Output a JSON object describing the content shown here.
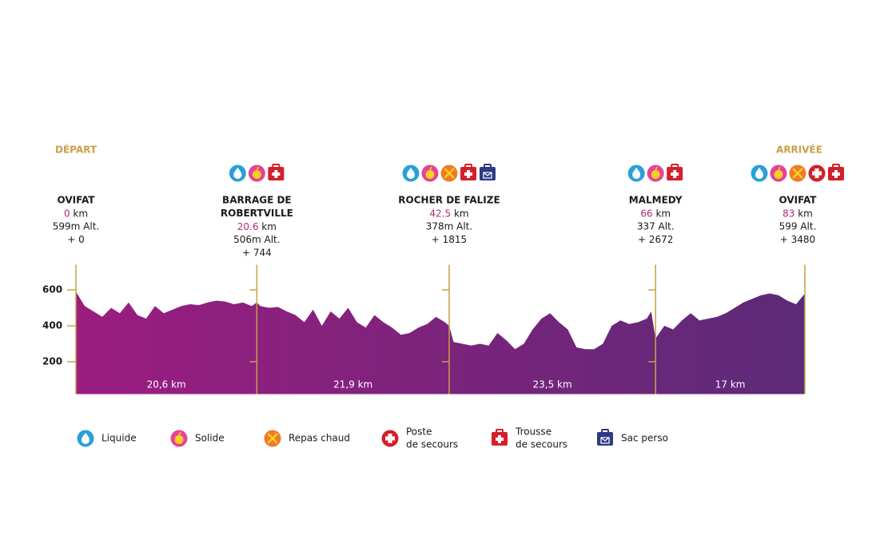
{
  "chart_data": {
    "type": "area",
    "start_label": "DÉPART",
    "end_label": "ARRIVÉE",
    "xlim": [
      0,
      83
    ],
    "ylim": [
      20,
      740
    ],
    "yticks": [
      200,
      400,
      600
    ],
    "x": [
      0,
      1,
      2,
      3,
      4,
      5,
      6,
      7,
      8,
      9,
      10,
      11,
      12,
      13,
      14,
      15,
      16,
      17,
      18,
      19,
      20,
      20.6,
      21,
      22,
      23,
      24,
      25,
      26,
      27,
      28,
      29,
      30,
      31,
      32,
      33,
      34,
      35,
      36,
      37,
      38,
      39,
      40,
      41,
      42,
      42.5,
      43,
      44,
      45,
      46,
      47,
      48,
      49,
      50,
      51,
      52,
      53,
      54,
      55,
      56,
      57,
      58,
      59,
      60,
      61,
      62,
      63,
      64,
      65,
      65.5,
      66,
      67,
      68,
      69,
      70,
      71,
      72,
      73,
      74,
      75,
      76,
      77,
      78,
      79,
      80,
      81,
      82,
      83
    ],
    "series": [
      {
        "colors": [
          "#9b1d80",
          "#5c2a78"
        ],
        "values": [
          590,
          510,
          480,
          450,
          500,
          470,
          530,
          460,
          440,
          510,
          470,
          490,
          510,
          520,
          515,
          530,
          540,
          535,
          520,
          530,
          510,
          530,
          510,
          500,
          505,
          480,
          460,
          420,
          490,
          400,
          480,
          440,
          500,
          420,
          390,
          460,
          420,
          390,
          350,
          360,
          390,
          410,
          450,
          420,
          400,
          310,
          300,
          290,
          300,
          290,
          360,
          320,
          270,
          300,
          380,
          440,
          470,
          420,
          380,
          280,
          270,
          270,
          300,
          400,
          430,
          410,
          420,
          440,
          480,
          330,
          400,
          380,
          430,
          470,
          430,
          440,
          450,
          470,
          500,
          530,
          550,
          570,
          580,
          570,
          540,
          520,
          580
        ]
      }
    ],
    "segments": [
      "20,6 km",
      "21,9 km",
      "23,5 km",
      "17 km"
    ],
    "km_unit": "km",
    "stations": [
      {
        "name": [
          "OVIFAT"
        ],
        "km": 0,
        "altitude": "599m Alt.",
        "gain": "+ 0",
        "services": []
      },
      {
        "name": [
          "BARRAGE DE",
          "ROBERTVILLE"
        ],
        "km": 20.6,
        "altitude": "506m Alt.",
        "gain": "+ 744",
        "services": [
          0,
          1,
          4
        ]
      },
      {
        "name": [
          "ROCHER DE FALIZE"
        ],
        "km": 42.5,
        "altitude": "378m Alt.",
        "gain": "+ 1815",
        "services": [
          0,
          1,
          2,
          4,
          5
        ]
      },
      {
        "name": [
          "MALMEDY"
        ],
        "km": 66,
        "altitude": "337 Alt.",
        "gain": "+ 2672",
        "services": [
          0,
          1,
          4
        ]
      },
      {
        "name": [
          "OVIFAT"
        ],
        "km": 83,
        "altitude": "599 Alt.",
        "gain": "+ 3480",
        "services": [
          0,
          1,
          2,
          3,
          4
        ]
      }
    ],
    "legend": [
      {
        "label": [
          "Liquide"
        ],
        "color": "#2b9fd9"
      },
      {
        "label": [
          "Solide"
        ],
        "color": "#e6419b"
      },
      {
        "label": [
          "Repas chaud"
        ],
        "color": "#f07a2a"
      },
      {
        "label": [
          "Poste",
          "de secours"
        ],
        "color": "#d3202b"
      },
      {
        "label": [
          "Trousse",
          "de secours"
        ],
        "color": "#d3202b"
      },
      {
        "label": [
          "Sac perso"
        ],
        "color": "#2f3a86"
      }
    ],
    "accent": "#c9a046",
    "km_color": "#b4287f"
  }
}
